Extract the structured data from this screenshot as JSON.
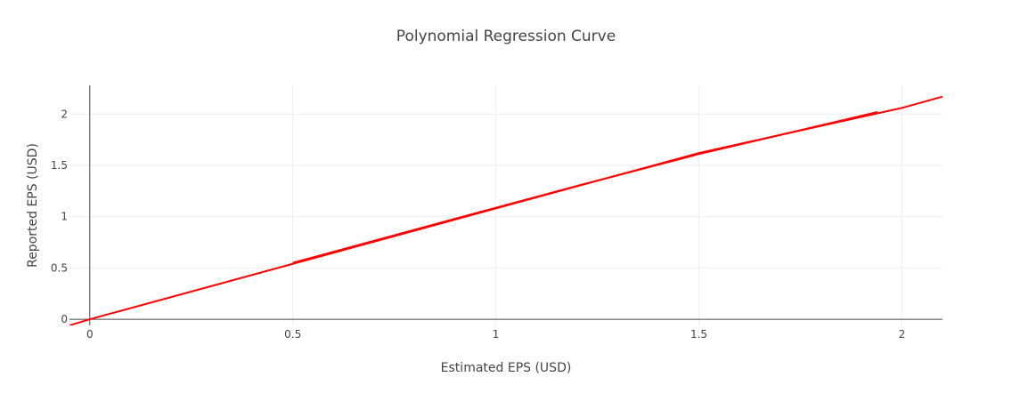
{
  "chart_data": {
    "type": "line",
    "title": "Polynomial Regression Curve",
    "xlabel": "Estimated EPS (USD)",
    "ylabel": "Reported EPS (USD)",
    "xlim": [
      -0.05,
      2.1
    ],
    "ylim": [
      -0.06,
      2.28
    ],
    "grid": true,
    "legend": "none",
    "x_ticks": [
      0,
      0.5,
      1,
      1.5,
      2
    ],
    "x_tick_labels": [
      "0",
      "0.5",
      "1",
      "1.5",
      "2"
    ],
    "y_ticks": [
      0,
      0.5,
      1,
      1.5,
      2
    ],
    "y_tick_labels": [
      "0",
      "0.5",
      "1",
      "1.5",
      "2"
    ],
    "series": [
      {
        "color": "#ff0000",
        "x": [
          -0.05,
          0.0,
          0.5,
          1.0,
          1.5,
          2.0,
          2.1
        ],
        "y": [
          -0.06,
          0.0,
          0.54,
          1.08,
          1.62,
          2.06,
          2.17
        ]
      },
      {
        "color": "#ff0000",
        "x": [
          0.5,
          0.9,
          1.2,
          1.5,
          1.94
        ],
        "y": [
          0.55,
          0.98,
          1.3,
          1.61,
          2.02
        ]
      }
    ]
  }
}
